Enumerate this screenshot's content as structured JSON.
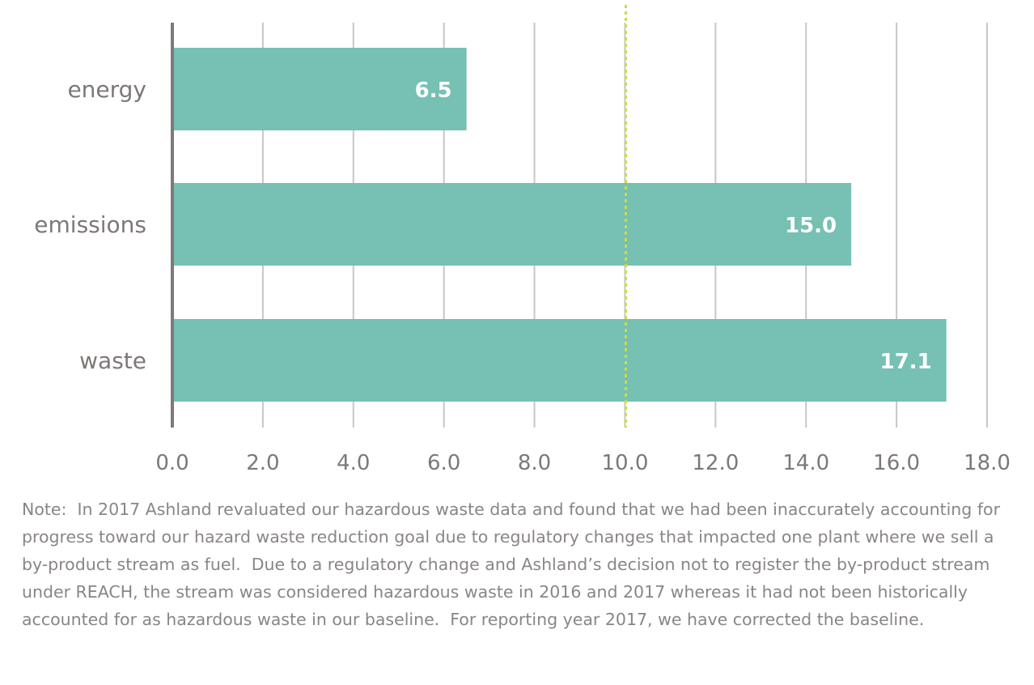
{
  "chart_data": {
    "type": "bar",
    "orientation": "horizontal",
    "categories": [
      "energy",
      "emissions",
      "waste"
    ],
    "values": [
      6.5,
      15.0,
      17.1
    ],
    "value_labels": [
      "6.5",
      "15.0",
      "17.1"
    ],
    "xlim": [
      0,
      18
    ],
    "xticks": [
      "0.0",
      "2.0",
      "4.0",
      "6.0",
      "8.0",
      "10.0",
      "12.0",
      "14.0",
      "16.0",
      "18.0"
    ],
    "reference_line": 10.0,
    "grid": true,
    "colors": {
      "bar": "#76c0b4",
      "grid": "#c9c6c4",
      "axis": "#7e7a78",
      "reference": "#c8dd4a",
      "text": "#7d7876"
    }
  },
  "note": "Note:  In 2017 Ashland revaluated our hazardous waste data and found that we had been inaccurately accounting for progress toward our hazard waste reduction goal due to regulatory changes that impacted one plant where we sell a by-product stream as fuel.  Due to a regulatory change and Ashland’s decision not to register the by-product stream under REACH, the stream was considered hazardous waste in 2016 and 2017 whereas it had not been historically accounted for as hazardous waste in our baseline.  For reporting year 2017, we have corrected the baseline."
}
